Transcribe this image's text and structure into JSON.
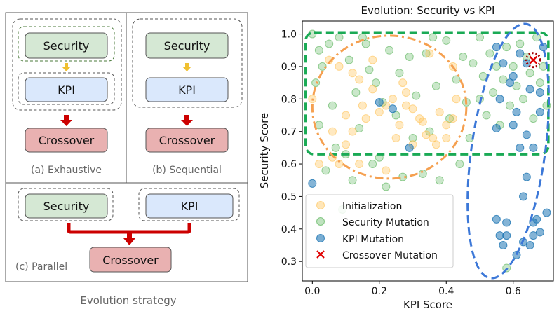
{
  "strategy": {
    "title": "Evolution strategy",
    "security_label": "Security",
    "kpi_label": "KPI",
    "crossover_label": "Crossover",
    "exhaustive_caption": "(a) Exhaustive",
    "sequential_caption": "(b) Sequential",
    "parallel_caption": "(c) Parallel",
    "colors": {
      "security_fill": "#d5e8d4",
      "kpi_fill": "#dae8fc",
      "crossover_fill": "#e9b1b1",
      "arrow_yellow": "#f0c030",
      "arrow_red": "#cc0000"
    }
  },
  "chart_data": {
    "type": "scatter",
    "title": "Evolution: Security vs KPI",
    "xlabel": "KPI Score",
    "ylabel": "Security Score",
    "xlim": [
      -0.03,
      0.72
    ],
    "ylim": [
      0.24,
      1.04
    ],
    "xticks": [
      0.0,
      0.2,
      0.4,
      0.6
    ],
    "xtick_labels": [
      "0.0",
      "0.2",
      "0.4",
      "0.6"
    ],
    "yticks": [
      0.3,
      0.4,
      0.5,
      0.6,
      0.7,
      0.8,
      0.9,
      1.0
    ],
    "ytick_labels": [
      "0.3",
      "0.4",
      "0.5",
      "0.6",
      "0.7",
      "0.8",
      "0.9",
      "1.0"
    ],
    "legend_position": "lower-left",
    "colors": {
      "initialization": "#ffc04d",
      "security": "#2ca02c",
      "kpi": "#1f77b4",
      "crossover": "#e00000",
      "green_region": "#1aaa55",
      "orange_region": "#f5a050",
      "blue_region": "#3c78d8"
    },
    "series": [
      {
        "name": "Initialization",
        "marker": "circle",
        "points": [
          [
            0.0,
            0.8
          ],
          [
            0.02,
            0.6
          ],
          [
            0.06,
            0.62
          ],
          [
            0.08,
            0.6
          ],
          [
            0.1,
            0.75
          ],
          [
            0.12,
            0.88
          ],
          [
            0.14,
            0.86
          ],
          [
            0.15,
            0.78
          ],
          [
            0.16,
            0.74
          ],
          [
            0.18,
            0.92
          ],
          [
            0.2,
            0.76
          ],
          [
            0.22,
            0.78
          ],
          [
            0.24,
            0.8
          ],
          [
            0.26,
            0.72
          ],
          [
            0.27,
            0.85
          ],
          [
            0.28,
            0.78
          ],
          [
            0.3,
            0.77
          ],
          [
            0.32,
            0.74
          ],
          [
            0.34,
            0.69
          ],
          [
            0.35,
            0.94
          ],
          [
            0.36,
            0.68
          ],
          [
            0.38,
            0.76
          ],
          [
            0.4,
            0.72
          ],
          [
            0.42,
            0.74
          ],
          [
            0.43,
            0.8
          ],
          [
            0.05,
            0.92
          ],
          [
            0.08,
            0.9
          ],
          [
            0.1,
            0.66
          ],
          [
            0.12,
            0.7
          ],
          [
            0.18,
            0.83
          ],
          [
            0.25,
            0.68
          ],
          [
            0.3,
            0.66
          ],
          [
            0.33,
            0.73
          ],
          [
            0.37,
            0.66
          ],
          [
            0.4,
            0.68
          ],
          [
            0.22,
            0.58
          ],
          [
            0.14,
            0.6
          ],
          [
            0.06,
            0.7
          ],
          [
            0.42,
            0.9
          ],
          [
            0.28,
            0.82
          ]
        ]
      },
      {
        "name": "Security Mutation",
        "marker": "circle",
        "points": [
          [
            0.0,
            1.0
          ],
          [
            0.01,
            0.85
          ],
          [
            0.02,
            0.72
          ],
          [
            0.03,
            0.9
          ],
          [
            0.05,
            0.97
          ],
          [
            0.06,
            0.78
          ],
          [
            0.07,
            0.65
          ],
          [
            0.08,
            0.99
          ],
          [
            0.09,
            0.46
          ],
          [
            0.1,
            0.63
          ],
          [
            0.11,
            0.92
          ],
          [
            0.13,
            0.82
          ],
          [
            0.14,
            0.71
          ],
          [
            0.15,
            0.99
          ],
          [
            0.17,
            0.89
          ],
          [
            0.19,
            0.85
          ],
          [
            0.2,
            0.62
          ],
          [
            0.21,
            0.79
          ],
          [
            0.22,
            0.53
          ],
          [
            0.23,
            0.95
          ],
          [
            0.25,
            0.75
          ],
          [
            0.26,
            0.88
          ],
          [
            0.27,
            0.56
          ],
          [
            0.29,
            0.93
          ],
          [
            0.3,
            0.68
          ],
          [
            0.31,
            0.81
          ],
          [
            0.33,
            0.57
          ],
          [
            0.34,
            0.94
          ],
          [
            0.35,
            0.7
          ],
          [
            0.37,
            0.84
          ],
          [
            0.38,
            0.55
          ],
          [
            0.4,
            0.98
          ],
          [
            0.41,
            0.74
          ],
          [
            0.43,
            0.86
          ],
          [
            0.44,
            0.6
          ],
          [
            0.45,
            0.93
          ],
          [
            0.46,
            0.79
          ],
          [
            0.47,
            0.68
          ],
          [
            0.5,
            0.99
          ],
          [
            0.5,
            0.8
          ],
          [
            0.51,
            0.87
          ],
          [
            0.52,
            0.75
          ],
          [
            0.53,
            0.94
          ],
          [
            0.54,
            0.82
          ],
          [
            0.55,
            0.9
          ],
          [
            0.56,
            0.72
          ],
          [
            0.57,
            0.86
          ],
          [
            0.58,
            0.96
          ],
          [
            0.59,
            0.78
          ],
          [
            0.6,
            0.9
          ],
          [
            0.61,
            0.84
          ],
          [
            0.62,
            0.97
          ],
          [
            0.63,
            0.8
          ],
          [
            0.64,
            0.93
          ],
          [
            0.65,
            0.88
          ],
          [
            0.66,
            0.74
          ],
          [
            0.67,
            0.99
          ],
          [
            0.68,
            0.85
          ],
          [
            0.69,
            0.9
          ],
          [
            0.7,
            0.78
          ],
          [
            0.58,
            0.28
          ],
          [
            0.04,
            0.58
          ],
          [
            0.12,
            0.55
          ],
          [
            0.18,
            0.6
          ],
          [
            0.02,
            0.95
          ],
          [
            0.16,
            0.97
          ],
          [
            0.36,
            0.99
          ],
          [
            0.48,
            0.91
          ]
        ]
      },
      {
        "name": "KPI Mutation",
        "marker": "circle",
        "points": [
          [
            0.0,
            0.54
          ],
          [
            0.29,
            0.65
          ],
          [
            0.24,
            0.77
          ],
          [
            0.2,
            0.79
          ],
          [
            0.55,
            0.43
          ],
          [
            0.56,
            0.38
          ],
          [
            0.57,
            0.35
          ],
          [
            0.58,
            0.42
          ],
          [
            0.59,
            0.85
          ],
          [
            0.6,
            0.87
          ],
          [
            0.61,
            0.76
          ],
          [
            0.62,
            0.65
          ],
          [
            0.63,
            0.5
          ],
          [
            0.64,
            0.56
          ],
          [
            0.65,
            0.83
          ],
          [
            0.66,
            0.38
          ],
          [
            0.67,
            0.43
          ],
          [
            0.68,
            0.82
          ],
          [
            0.69,
            0.96
          ],
          [
            0.7,
            0.45
          ],
          [
            0.63,
            0.36
          ],
          [
            0.65,
            0.35
          ],
          [
            0.61,
            0.32
          ],
          [
            0.55,
            0.96
          ],
          [
            0.57,
            0.91
          ],
          [
            0.6,
            0.72
          ],
          [
            0.62,
            0.94
          ],
          [
            0.66,
            0.65
          ],
          [
            0.68,
            0.76
          ],
          [
            0.64,
            0.69
          ],
          [
            0.55,
            0.71
          ],
          [
            0.58,
            0.38
          ],
          [
            0.66,
            0.42
          ],
          [
            0.68,
            0.39
          ],
          [
            0.64,
            0.91
          ],
          [
            0.56,
            0.8
          ]
        ]
      },
      {
        "name": "Crossover Mutation",
        "marker": "x",
        "points": [
          [
            0.66,
            0.92
          ]
        ]
      }
    ]
  }
}
